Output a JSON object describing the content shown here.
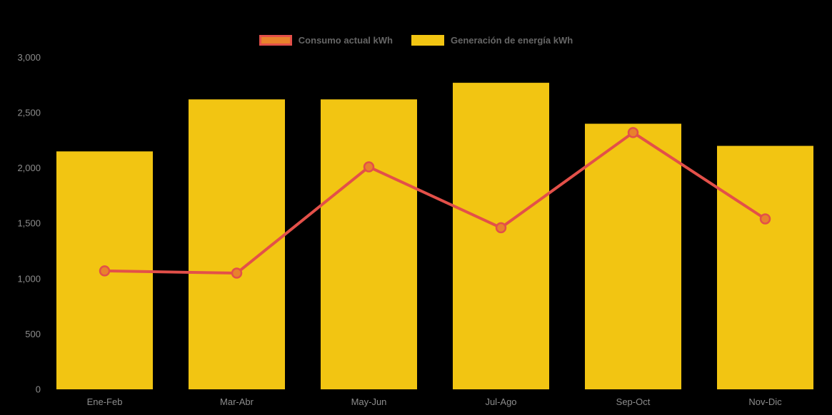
{
  "chart_data": {
    "type": "combo",
    "title": "",
    "categories": [
      "Ene-Feb",
      "Mar-Abr",
      "May-Jun",
      "Jul-Ago",
      "Sep-Oct",
      "Nov-Dic"
    ],
    "series": [
      {
        "name": "Consumo actual kWh",
        "type": "line",
        "values": [
          1070,
          1050,
          2010,
          1460,
          2320,
          1540
        ],
        "line_color": "#E35049",
        "marker_fill": "#E8822C"
      },
      {
        "name": "Generación de energía kWh",
        "type": "bar",
        "values": [
          2150,
          2620,
          2620,
          2770,
          2400,
          2200
        ],
        "bar_color": "#F2C512"
      }
    ],
    "xlabel": "",
    "ylabel": "",
    "ylim": [
      0,
      3000
    ],
    "ytick_values": [
      0,
      500,
      1000,
      1500,
      2000,
      2500,
      3000
    ],
    "ytick_labels": [
      "0",
      "500",
      "1,000",
      "1,500",
      "2,000",
      "2,500",
      "3,000"
    ],
    "grid": false,
    "legend_position": "top-center",
    "background_color": "#000000",
    "axis_label_color": "#8C8C8C",
    "legend_text_color": "#666666"
  }
}
